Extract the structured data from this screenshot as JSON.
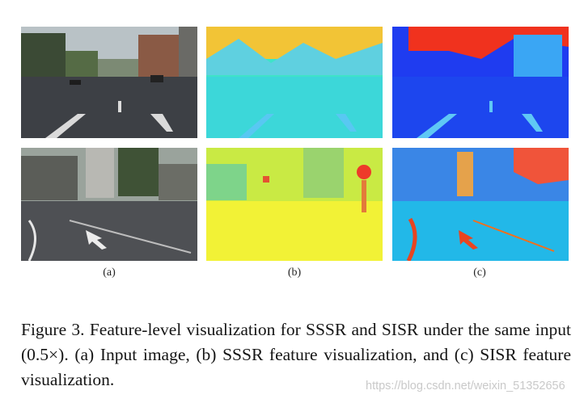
{
  "figure": {
    "subfigure_labels": [
      "(a)",
      "(b)",
      "(c)"
    ],
    "caption": "Figure 3. Feature-level visualization for SSSR and SISR under the same input (0.5×).  (a) Input image, (b) SSSR feature visualization, and (c) SISR feature visualization.",
    "colors": {
      "sssr_background": "#3fe3c8",
      "sssr_yellow": "#f2f236",
      "sisr_blue": "#1f3cf0",
      "sisr_red": "#f0321e",
      "road_gray": "#3c3f44"
    }
  },
  "watermark": "https://blog.csdn.net/weixin_51352656"
}
